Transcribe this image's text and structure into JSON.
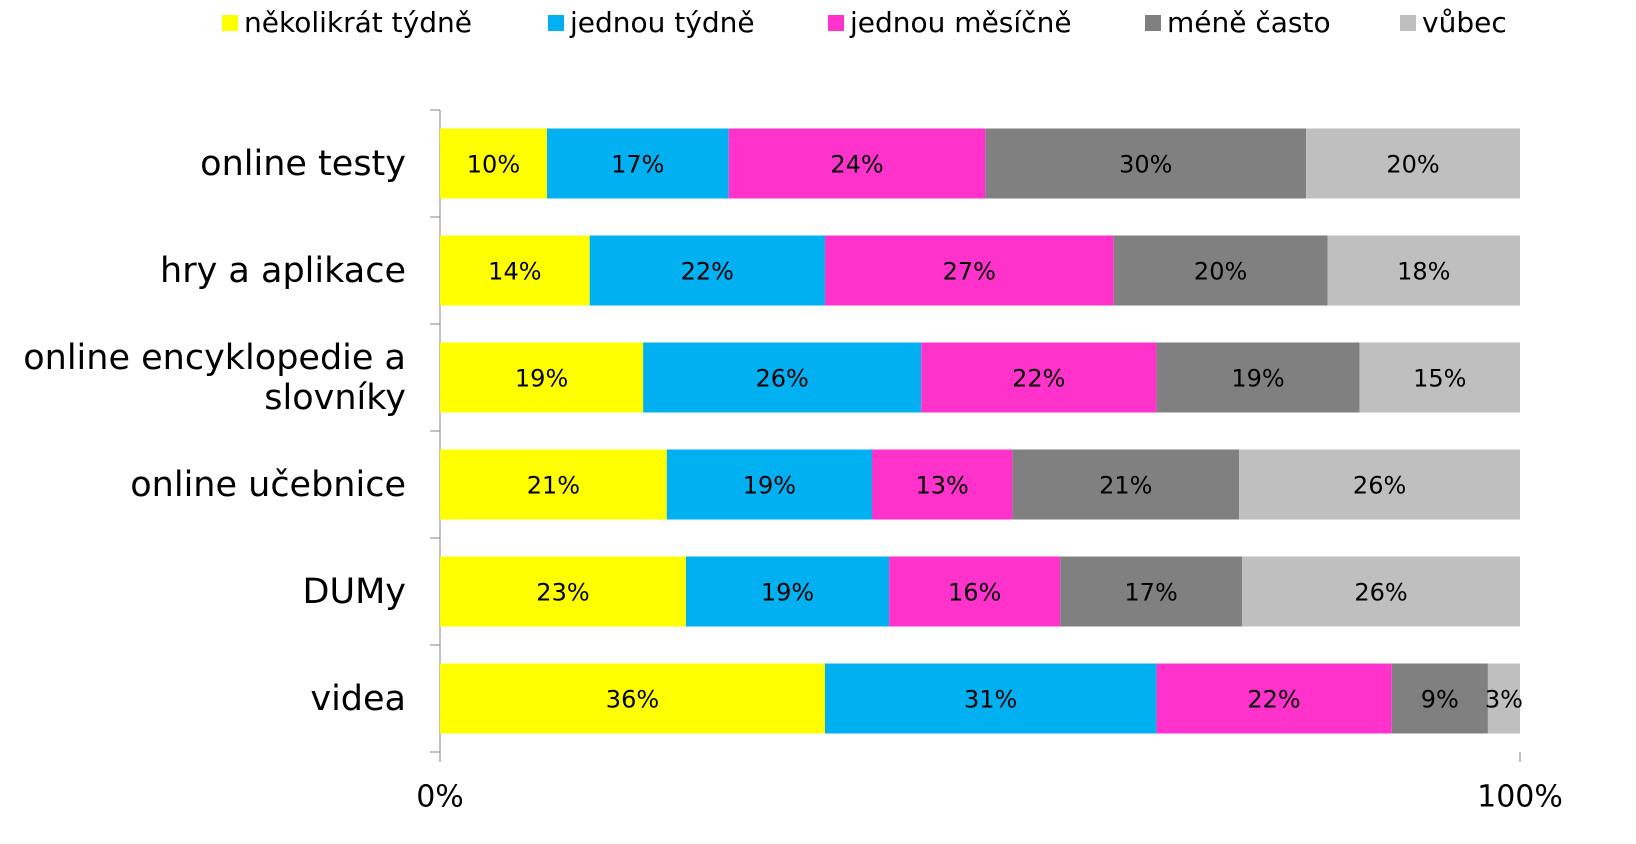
{
  "chart_data": {
    "type": "bar",
    "orientation": "horizontal",
    "stack": "percent",
    "categories": [
      "online testy",
      "hry a aplikace",
      "online encyklopedie a slovníky",
      "online učebnice",
      "DUMy",
      "videa"
    ],
    "series": [
      {
        "name": "několikrát týdně",
        "color": "#ffff00",
        "values": [
          10,
          14,
          19,
          21,
          23,
          36
        ],
        "value_labels": [
          "10%",
          "14%",
          "19%",
          "21%",
          "23%",
          "36%"
        ]
      },
      {
        "name": "jednou týdně",
        "color": "#00b0f0",
        "values": [
          17,
          22,
          26,
          19,
          19,
          31
        ],
        "value_labels": [
          "17%",
          "22%",
          "26%",
          "19%",
          "19%",
          "31%"
        ]
      },
      {
        "name": "jednou měsíčně",
        "color": "#ff33cc",
        "values": [
          24,
          27,
          22,
          13,
          16,
          22
        ],
        "value_labels": [
          "24%",
          "27%",
          "22%",
          "13%",
          "16%",
          "22%"
        ]
      },
      {
        "name": "méně často",
        "color": "#808080",
        "values": [
          30,
          20,
          19,
          21,
          17,
          9
        ],
        "value_labels": [
          "30%",
          "20%",
          "19%",
          "21%",
          "17%",
          "9%"
        ]
      },
      {
        "name": "vůbec",
        "color": "#bfbfbf",
        "values": [
          20,
          18,
          15,
          26,
          26,
          3
        ],
        "value_labels": [
          "20%",
          "18%",
          "15%",
          "26%",
          "26%",
          "3%"
        ]
      }
    ],
    "xlim": [
      0,
      100
    ],
    "xticks": [
      {
        "value": 0,
        "label": "0%"
      },
      {
        "value": 100,
        "label": "100%"
      }
    ],
    "legend": "top"
  }
}
